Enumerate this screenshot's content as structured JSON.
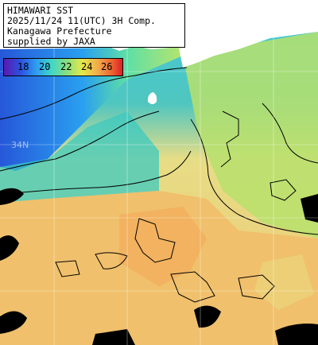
{
  "title": {
    "line1": "HIMAWARI SST",
    "line2": "2025/11/24 11(UTC) 3H Comp.",
    "line3": "Kanagawa Prefecture",
    "line4": "supplied by JAXA"
  },
  "legend": {
    "ticks": [
      "18",
      "20",
      "22",
      "24",
      "26"
    ],
    "colors": {
      "c17": "#5c19b0",
      "c18": "#2a52e0",
      "c20": "#2fa0f0",
      "c22": "#8fe07a",
      "c24": "#f3a84a",
      "c26": "#d8202a"
    }
  },
  "grid": {
    "lat_label": "34N"
  }
}
